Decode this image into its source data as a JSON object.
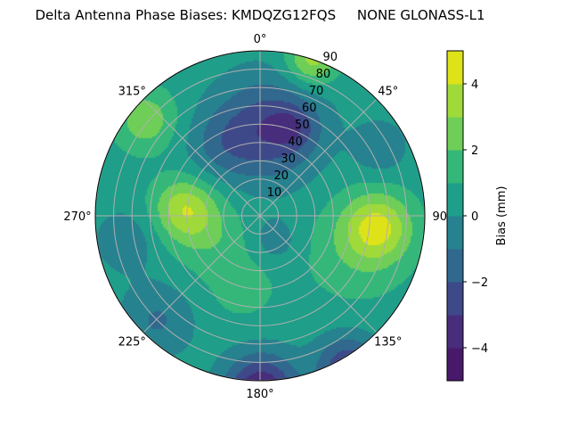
{
  "chart_data": {
    "type": "polar-contour",
    "title": "Delta Antenna Phase Biases: KMDQZG12FQS     NONE GLONASS-L1",
    "angular_axis": {
      "direction": "clockwise",
      "zero_location": "top",
      "tick_labels": [
        "0°",
        "45°",
        "90°",
        "135°",
        "180°",
        "225°",
        "270°",
        "315°"
      ],
      "tick_values": [
        0,
        45,
        90,
        135,
        180,
        225,
        270,
        315
      ]
    },
    "radial_axis": {
      "range": [
        0,
        90
      ],
      "tick_values": [
        10,
        20,
        30,
        40,
        50,
        60,
        70,
        80,
        90
      ],
      "tick_labels": [
        "10",
        "20",
        "30",
        "40",
        "50",
        "60",
        "70",
        "80",
        "90"
      ]
    },
    "grid": true,
    "colorbar": {
      "label": "Bias (mm)",
      "levels": [
        -5,
        -4,
        -3,
        -2,
        -1,
        0,
        1,
        2,
        3,
        4,
        5
      ],
      "tick_values": [
        -4,
        -2,
        0,
        2,
        4
      ],
      "tick_labels": [
        "−4",
        "−2",
        "0",
        "2",
        "4"
      ],
      "colormap": "viridis",
      "colors": [
        "#48186a",
        "#472d7b",
        "#3e4989",
        "#31688e",
        "#26828e",
        "#1f9e89",
        "#35b779",
        "#6ece58",
        "#9fda3a",
        "#dde318"
      ]
    },
    "field": {
      "background_bias": 0.5,
      "features": [
        {
          "azimuth": 5,
          "zenith": 48,
          "bias": -3.2,
          "spread": 20
        },
        {
          "azimuth": 20,
          "zenith": 52,
          "bias": -1.4,
          "spread": 9
        },
        {
          "azimuth": 330,
          "zenith": 45,
          "bias": -1.2,
          "spread": 14
        },
        {
          "azimuth": 95,
          "zenith": 64,
          "bias": 3.4,
          "spread": 13
        },
        {
          "azimuth": 110,
          "zenith": 55,
          "bias": 1.2,
          "spread": 20
        },
        {
          "azimuth": 276,
          "zenith": 42,
          "bias": 3.1,
          "spread": 12
        },
        {
          "azimuth": 250,
          "zenith": 30,
          "bias": 1.2,
          "spread": 15
        },
        {
          "azimuth": 180,
          "zenith": 95,
          "bias": -4.6,
          "spread": 14
        },
        {
          "azimuth": 150,
          "zenith": 95,
          "bias": -3.5,
          "spread": 12
        },
        {
          "azimuth": 225,
          "zenith": 80,
          "bias": -1.6,
          "spread": 14
        },
        {
          "azimuth": 18,
          "zenith": 90,
          "bias": 3.0,
          "spread": 10
        },
        {
          "azimuth": 310,
          "zenith": 82,
          "bias": 2.2,
          "spread": 12
        },
        {
          "azimuth": 150,
          "zenith": 15,
          "bias": -1.2,
          "spread": 9
        },
        {
          "azimuth": 60,
          "zenith": 75,
          "bias": -1.4,
          "spread": 10
        },
        {
          "azimuth": 260,
          "zenith": 75,
          "bias": -1.2,
          "spread": 12
        },
        {
          "azimuth": 195,
          "zenith": 40,
          "bias": 0.9,
          "spread": 14
        }
      ]
    }
  }
}
